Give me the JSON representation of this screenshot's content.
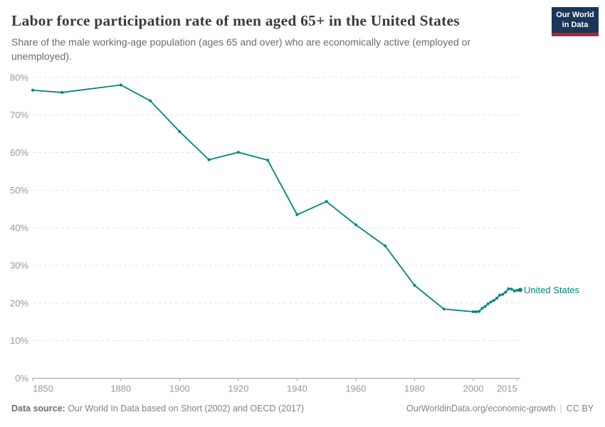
{
  "header": {
    "title": "Labor force participation rate of men aged 65+ in the United States",
    "subtitle": "Share of the male working-age population (ages 65 and over) who are economically active (employed or unemployed).",
    "logo": {
      "line1": "Our World",
      "line2": "in Data"
    }
  },
  "chart_data": {
    "type": "line",
    "title": "Labor force participation rate of men aged 65+ in the United States",
    "series": [
      {
        "name": "United States",
        "x": [
          1850,
          1860,
          1880,
          1890,
          1900,
          1910,
          1920,
          1930,
          1940,
          1950,
          1960,
          1970,
          1980,
          1990,
          2000,
          2001,
          2002,
          2003,
          2004,
          2005,
          2006,
          2007,
          2008,
          2009,
          2010,
          2011,
          2012,
          2013,
          2014,
          2015,
          2016
        ],
        "y": [
          76.6,
          76.0,
          78.0,
          73.8,
          65.6,
          58.1,
          60.1,
          58.0,
          43.5,
          47.0,
          40.8,
          35.2,
          24.7,
          18.4,
          17.7,
          17.7,
          17.8,
          18.6,
          19.1,
          19.8,
          20.3,
          20.7,
          21.3,
          22.1,
          22.3,
          22.9,
          23.8,
          23.7,
          23.2,
          23.4,
          23.5
        ]
      }
    ],
    "x_ticks": [
      1850,
      1880,
      1900,
      1920,
      1940,
      1960,
      1980,
      2000,
      2015
    ],
    "y_ticks": [
      0,
      10,
      20,
      30,
      40,
      50,
      60,
      70,
      80
    ],
    "y_tick_suffix": "%",
    "xlim": [
      1850,
      2016
    ],
    "ylim": [
      0,
      80
    ],
    "grid": "horizontal-dashed",
    "legend_position": "end-of-line-label",
    "line_color": "#00847e",
    "grid_color": "#e3e3e3",
    "axis_color": "#a3a3a3",
    "tick_label_color": "#999999"
  },
  "footer": {
    "source_label": "Data source:",
    "source_text": " Our World In Data based on Short (2002) and OECD (2017)",
    "link_text": "OurWorldinData.org/economic-growth",
    "separator": "|",
    "license_text": "CC BY"
  }
}
